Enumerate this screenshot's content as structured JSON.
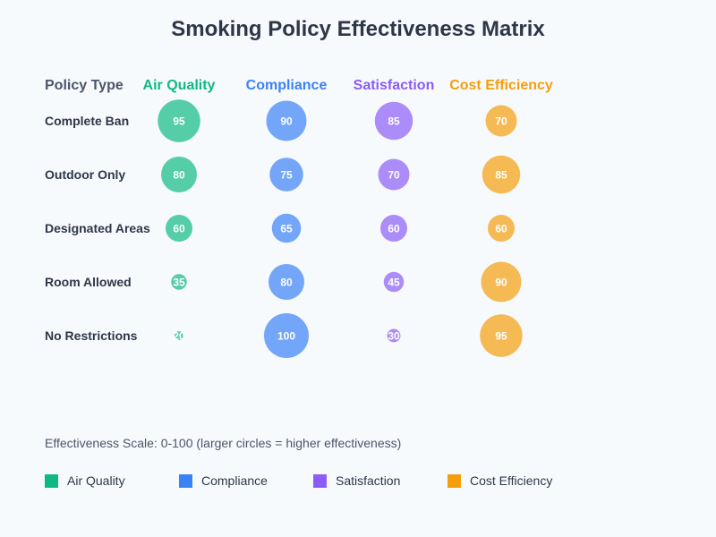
{
  "chart_data": {
    "type": "heatmap",
    "title": "Smoking Policy Effectiveness Matrix",
    "row_header": "Policy Type",
    "categories": [
      "Complete Ban",
      "Outdoor Only",
      "Designated Areas",
      "Room Allowed",
      "No Restrictions"
    ],
    "series": [
      {
        "name": "Air Quality",
        "color": "#10b981",
        "values": [
          95,
          80,
          60,
          35,
          20
        ]
      },
      {
        "name": "Compliance",
        "color": "#3b82f6",
        "values": [
          90,
          75,
          65,
          80,
          100
        ]
      },
      {
        "name": "Satisfaction",
        "color": "#8b5cf6",
        "values": [
          85,
          70,
          60,
          45,
          30
        ]
      },
      {
        "name": "Cost Efficiency",
        "color": "#f59e0b",
        "values": [
          70,
          85,
          60,
          90,
          95
        ]
      }
    ],
    "scale_note": "Effectiveness Scale: 0-100 (larger circles = higher effectiveness)",
    "legend_position": "bottom"
  }
}
